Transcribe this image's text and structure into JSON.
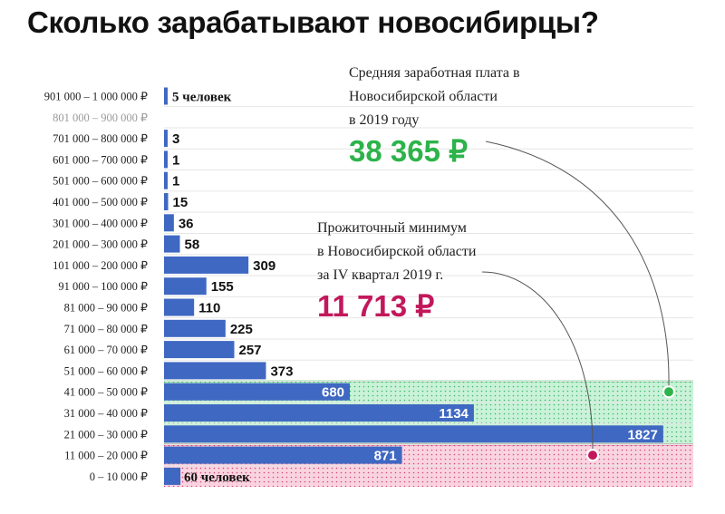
{
  "title": "Сколько зарабатывают новосибирцы?",
  "annotations": {
    "average": {
      "lines": [
        "Средняя заработная плата в",
        "Новосибирской области",
        "в 2019 году"
      ],
      "value": "38 365 ₽",
      "color": "#2db34a",
      "marker_category": "41 000 – 50 000 ₽"
    },
    "minimum": {
      "lines": [
        "Прожиточный минимум",
        "в  Новосибирской области",
        "за IV квартал 2019 г."
      ],
      "value": "11 713 ₽",
      "color": "#c2185b",
      "marker_category": "11 000 – 20 000 ₽"
    }
  },
  "chart_data": {
    "type": "bar",
    "orientation": "horizontal",
    "title": "Сколько зарабатывают новосибирцы?",
    "bar_color": "#3f68c2",
    "categories": [
      "901 000 – 1 000 000 ₽",
      "801 000 – 900 000 ₽",
      "701 000 – 800 000 ₽",
      "601 000 – 700 000 ₽",
      "501 000 – 600 000 ₽",
      "401 000 – 500 000 ₽",
      "301 000 – 400 000 ₽",
      "201 000 – 300 000 ₽",
      "101 000 – 200 000 ₽",
      "91 000 – 100 000 ₽",
      "81 000 – 90 000 ₽",
      "71 000 – 80 000 ₽",
      "61 000 – 70 000 ₽",
      "51 000 – 60 000 ₽",
      "41 000 – 50 000 ₽",
      "31 000 – 40 000 ₽",
      "21 000 – 30 000 ₽",
      "11 000 – 20 000 ₽",
      "0 – 10 000 ₽"
    ],
    "values": [
      5,
      0,
      3,
      1,
      1,
      15,
      36,
      58,
      309,
      155,
      110,
      225,
      257,
      373,
      680,
      1134,
      1827,
      871,
      60
    ],
    "value_labels": [
      "5 человек",
      "",
      "3",
      "1",
      "1",
      "15",
      "36",
      "58",
      "309",
      "155",
      "110",
      "225",
      "257",
      "373",
      "680",
      "1134",
      "1827",
      "871",
      "60 человек"
    ],
    "dimmed_categories": [
      "801 000 – 900 000 ₽"
    ],
    "grid": true,
    "xlim": [
      0,
      1900
    ],
    "highlight_regions": [
      {
        "from_category": "41 000 – 50 000 ₽",
        "to_category": "21 000 – 30 000 ₽",
        "color": "#2db34a",
        "meaning": "above minimum, up to average"
      },
      {
        "from_category": "11 000 – 20 000 ₽",
        "to_category": "0 – 10 000 ₽",
        "color": "#c2185b",
        "meaning": "below minimum"
      }
    ]
  }
}
